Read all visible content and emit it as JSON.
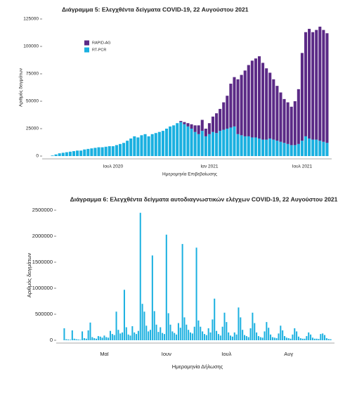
{
  "chart_data": [
    {
      "type": "bar",
      "stacked": true,
      "title": "Διάγραμμα 5: Ελεγχθέντα δείγματα COVID-19, 22 Αυγούστου 2021",
      "xlabel": "Ημερομηνία Επιβεβαίωσης",
      "ylabel": "Αριθμός δειγμάτων",
      "categories": [
        null,
        null,
        null,
        null,
        null,
        null,
        null,
        null,
        null,
        null,
        null,
        null,
        null,
        null,
        null,
        null,
        null,
        "Ιουλ 2020",
        null,
        null,
        null,
        null,
        null,
        null,
        null,
        null,
        null,
        null,
        null,
        null,
        null,
        null,
        null,
        null,
        null,
        null,
        null,
        null,
        null,
        null,
        null,
        null,
        null,
        null,
        "Ιαν 2021",
        null,
        null,
        null,
        null,
        null,
        null,
        null,
        null,
        null,
        null,
        null,
        null,
        null,
        null,
        null,
        null,
        null,
        null,
        null,
        null,
        null,
        null,
        null,
        null,
        null,
        "Ιουλ 2021",
        null,
        null,
        null,
        null,
        null,
        null,
        null
      ],
      "series": [
        {
          "name": "RT-PCR",
          "color": "#1ab0e0",
          "values": [
            500,
            1500,
            2500,
            3000,
            3500,
            4000,
            4500,
            5000,
            5000,
            6000,
            6500,
            7000,
            7500,
            8000,
            8000,
            8500,
            9000,
            9000,
            10000,
            11000,
            12000,
            14000,
            16000,
            18000,
            17000,
            19000,
            20000,
            18000,
            20000,
            21000,
            22000,
            23000,
            25000,
            27000,
            28000,
            30000,
            31000,
            29000,
            27000,
            25000,
            22000,
            20000,
            23000,
            18000,
            20000,
            22000,
            21000,
            23000,
            24000,
            25000,
            26000,
            27000,
            20000,
            19000,
            18000,
            18000,
            17000,
            17000,
            16000,
            15000,
            15000,
            16000,
            15000,
            14000,
            13000,
            12000,
            11000,
            10000,
            10000,
            11000,
            14000,
            18000,
            16000,
            15000,
            15000,
            14000,
            13000,
            12000
          ]
        },
        {
          "name": "RAPID-AG",
          "color": "#5b2a86",
          "values": [
            0,
            0,
            0,
            0,
            0,
            0,
            0,
            0,
            0,
            0,
            0,
            0,
            0,
            0,
            0,
            0,
            0,
            0,
            0,
            0,
            0,
            0,
            0,
            0,
            0,
            0,
            0,
            0,
            0,
            0,
            0,
            0,
            0,
            0,
            0,
            0,
            1000,
            2000,
            3000,
            4000,
            6000,
            8000,
            10000,
            7000,
            10000,
            14000,
            18000,
            20000,
            25000,
            30000,
            40000,
            45000,
            50000,
            55000,
            60000,
            65000,
            70000,
            72000,
            75000,
            70000,
            65000,
            60000,
            55000,
            50000,
            45000,
            40000,
            38000,
            35000,
            40000,
            50000,
            80000,
            95000,
            100000,
            98000,
            100000,
            104000,
            102000,
            100000
          ]
        }
      ],
      "legend": "top-left",
      "ylim": [
        0,
        125000
      ],
      "yticks": [
        0,
        25000,
        50000,
        75000,
        100000,
        125000
      ]
    },
    {
      "type": "bar",
      "title": "Διάγραμμα 6: Ελεγχθέντα δείγματα αυτοδιαγνωστικών ελέγχων COVID-19, 22 Αυγούστου 2021",
      "xlabel": "Ημερομηνία Δήλωσης",
      "ylabel": "Αριθμός δειγμάτων",
      "categories": [
        null,
        null,
        null,
        null,
        null,
        null,
        null,
        null,
        null,
        null,
        null,
        null,
        null,
        null,
        null,
        null,
        null,
        null,
        null,
        null,
        "Μαϊ",
        null,
        null,
        null,
        null,
        null,
        null,
        null,
        null,
        null,
        null,
        null,
        null,
        null,
        null,
        null,
        null,
        null,
        null,
        null,
        null,
        null,
        null,
        null,
        null,
        null,
        null,
        null,
        null,
        null,
        null,
        "Ιουν",
        null,
        null,
        null,
        null,
        null,
        null,
        null,
        null,
        null,
        null,
        null,
        null,
        null,
        null,
        null,
        null,
        null,
        null,
        null,
        null,
        null,
        null,
        null,
        null,
        null,
        null,
        null,
        null,
        null,
        "Ιουλ",
        null,
        null,
        null,
        null,
        null,
        null,
        null,
        null,
        null,
        null,
        null,
        null,
        null,
        null,
        null,
        null,
        null,
        null,
        null,
        null,
        null,
        null,
        null,
        null,
        null,
        null,
        null,
        null,
        null,
        null,
        "Αυγ",
        null,
        null,
        null,
        null,
        null,
        null,
        null,
        null,
        null,
        null,
        null,
        null,
        null,
        null,
        null,
        null,
        null,
        null,
        null,
        null,
        null
      ],
      "color": "#1ab0e0",
      "values": [
        230000,
        20000,
        15000,
        10000,
        190000,
        30000,
        20000,
        15000,
        10000,
        170000,
        40000,
        30000,
        190000,
        340000,
        60000,
        40000,
        30000,
        80000,
        70000,
        50000,
        90000,
        60000,
        50000,
        180000,
        120000,
        100000,
        550000,
        200000,
        130000,
        150000,
        970000,
        250000,
        110000,
        90000,
        270000,
        150000,
        120000,
        180000,
        2450000,
        700000,
        550000,
        280000,
        170000,
        200000,
        1630000,
        560000,
        300000,
        160000,
        250000,
        140000,
        120000,
        2030000,
        520000,
        300000,
        170000,
        140000,
        110000,
        330000,
        240000,
        1850000,
        440000,
        300000,
        200000,
        150000,
        130000,
        260000,
        1780000,
        380000,
        260000,
        170000,
        120000,
        100000,
        230000,
        150000,
        400000,
        800000,
        180000,
        120000,
        90000,
        260000,
        530000,
        350000,
        150000,
        90000,
        70000,
        150000,
        110000,
        630000,
        440000,
        200000,
        100000,
        80000,
        60000,
        230000,
        530000,
        330000,
        150000,
        80000,
        60000,
        50000,
        170000,
        350000,
        240000,
        110000,
        60000,
        50000,
        40000,
        130000,
        280000,
        190000,
        80000,
        50000,
        40000,
        30000,
        110000,
        230000,
        170000,
        70000,
        40000,
        30000,
        30000,
        80000,
        150000,
        110000,
        50000,
        30000,
        30000,
        25000,
        120000,
        130000,
        100000,
        40000,
        25000,
        20000
      ],
      "ylim": [
        0,
        2500000
      ],
      "yticks": [
        0,
        500000,
        1000000,
        1500000,
        2000000,
        2500000
      ]
    }
  ]
}
